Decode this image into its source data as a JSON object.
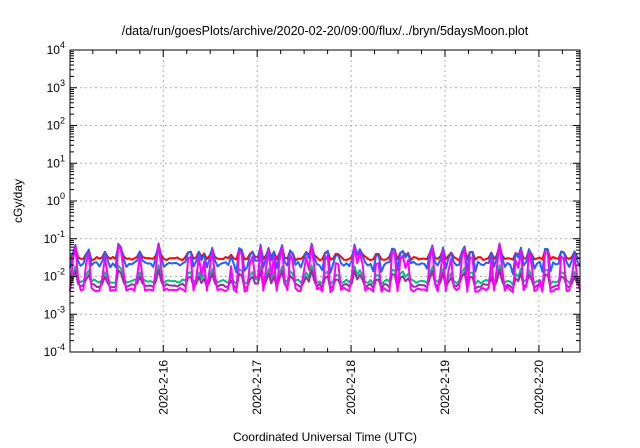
{
  "chart_data": {
    "type": "line",
    "title": "/data/run/goesPlots/archive/2020-02-20/09:00/flux/../bryn/5daysMoon.plot",
    "xlabel": "Coordinated Universal Time (UTC)",
    "ylabel": "cGy/day",
    "y_scale": "log",
    "ylim": [
      0.0001,
      10000
    ],
    "y_ticks": [
      {
        "base": "10",
        "exp": "-4",
        "value": 0.0001
      },
      {
        "base": "10",
        "exp": "-3",
        "value": 0.001
      },
      {
        "base": "10",
        "exp": "-2",
        "value": 0.01
      },
      {
        "base": "10",
        "exp": "-1",
        "value": 0.1
      },
      {
        "base": "10",
        "exp": "0",
        "value": 1
      },
      {
        "base": "10",
        "exp": "1",
        "value": 10
      },
      {
        "base": "10",
        "exp": "2",
        "value": 100
      },
      {
        "base": "10",
        "exp": "3",
        "value": 1000
      },
      {
        "base": "10",
        "exp": "4",
        "value": 10000
      }
    ],
    "xlim": [
      "2020-02-15T00:10",
      "2020-02-20T10:30"
    ],
    "x_ticks": [
      {
        "label": "2020-2-16",
        "day": 1.0
      },
      {
        "label": "2020-2-17",
        "day": 2.0
      },
      {
        "label": "2020-2-18",
        "day": 3.0
      },
      {
        "label": "2020-2-19",
        "day": 4.0
      },
      {
        "label": "2020-2-20",
        "day": 5.0
      }
    ],
    "grid": true,
    "series": [
      {
        "color": "#ff0000",
        "base": 0.03,
        "spike_max": 0.065,
        "dip_min": 0.028
      },
      {
        "color": "#2060ff",
        "base": 0.022,
        "spike_max": 0.075,
        "dip_min": 0.011
      },
      {
        "color": "#00c080",
        "base": 0.0075,
        "spike_max": 0.02,
        "dip_min": 0.006
      },
      {
        "color": "#9030a0",
        "base": 0.0058,
        "spike_max": 0.015,
        "dip_min": 0.0045
      },
      {
        "color": "#ff00ff",
        "base": 0.0045,
        "spike_max": 0.07,
        "dip_min": 0.0038
      }
    ],
    "spike_days": [
      0.06,
      0.2,
      0.38,
      0.52,
      0.55,
      0.75,
      0.95,
      1.28,
      1.38,
      1.46,
      1.52,
      1.74,
      1.82,
      1.9,
      1.95,
      2.04,
      2.12,
      2.18,
      2.26,
      2.36,
      2.52,
      2.58,
      2.74,
      2.85,
      3.04,
      3.1,
      3.28,
      3.45,
      3.54,
      3.6,
      3.86,
      3.98,
      4.06,
      4.2,
      4.28,
      4.5,
      4.58,
      4.7,
      4.76,
      4.82,
      4.9,
      5.04,
      5.08,
      5.25,
      5.38
    ]
  }
}
